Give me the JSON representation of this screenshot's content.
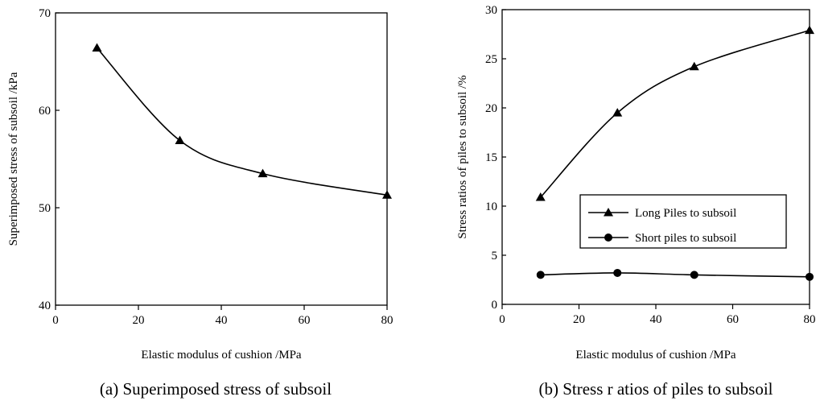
{
  "chart_data": [
    {
      "type": "line",
      "caption": "(a) Superimposed stress of subsoil",
      "xlabel": "Elastic modulus of cushion /MPa",
      "ylabel": "Superimposed stress of subsoil /kPa",
      "xlim": [
        0,
        80
      ],
      "ylim": [
        40,
        70
      ],
      "xticks": [
        "0",
        "20",
        "40",
        "60",
        "80"
      ],
      "yticks": [
        "40",
        "50",
        "60",
        "70"
      ],
      "grid": false,
      "series": [
        {
          "marker": "triangle",
          "x": [
            10,
            30,
            50,
            80
          ],
          "values": [
            66.4,
            56.9,
            53.5,
            51.3
          ]
        }
      ]
    },
    {
      "type": "line",
      "caption": "(b) Stress r atios of piles to subsoil",
      "xlabel": "Elastic modulus of cushion /MPa",
      "ylabel": "Stress ratios of piles to subsoil /%",
      "xlim": [
        0,
        80
      ],
      "ylim": [
        0,
        30
      ],
      "xticks": [
        "0",
        "20",
        "40",
        "60",
        "80"
      ],
      "yticks": [
        "0",
        "5",
        "10",
        "15",
        "20",
        "25",
        "30"
      ],
      "grid": false,
      "legend_position": "center-right",
      "series": [
        {
          "name": "Long Piles to subsoil",
          "marker": "triangle",
          "x": [
            10,
            30,
            50,
            80
          ],
          "values": [
            10.9,
            19.5,
            24.2,
            27.9
          ]
        },
        {
          "name": "Short piles to subsoil",
          "marker": "circle",
          "x": [
            10,
            30,
            50,
            80
          ],
          "values": [
            3.0,
            3.2,
            3.0,
            2.8
          ]
        }
      ]
    }
  ]
}
